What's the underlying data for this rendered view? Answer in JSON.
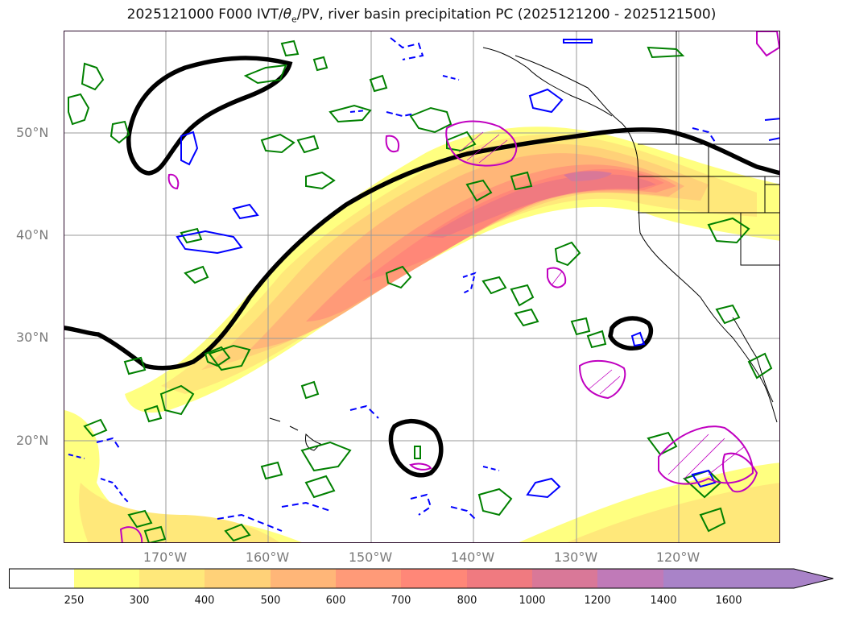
{
  "title_parts": {
    "prefix": "2025121000 F000 IVT/",
    "theta": "θ",
    "sub": "e",
    "suffix": "/PV, river basin precipitation PC (2025121200 - 2025121500)"
  },
  "map": {
    "lat_labels": [
      "50°N",
      "40°N",
      "30°N",
      "20°N"
    ],
    "lon_labels": [
      "170°W",
      "160°W",
      "150°W",
      "140°W",
      "130°W",
      "120°W"
    ],
    "gridlines": true,
    "fill_colors": [
      "#ffff80",
      "#ffe87a",
      "#ffd178",
      "#ffb678",
      "#ff9a78",
      "#ff8778",
      "#f07a80",
      "#d97898",
      "#c07ab8",
      "#a983c8"
    ],
    "line_colors": {
      "black": "#000000",
      "green": "#008000",
      "blue": "#0000ff",
      "magenta": "#c000c0",
      "coast": "#000000"
    }
  },
  "colorbar": {
    "tick_labels": [
      "250",
      "300",
      "400",
      "500",
      "600",
      "700",
      "800",
      "1000",
      "1200",
      "1400",
      "1600"
    ],
    "colors": [
      "#ffffff",
      "#ffff80",
      "#ffe87a",
      "#ffd178",
      "#ffb678",
      "#ff9a78",
      "#ff8778",
      "#f07a80",
      "#d97898",
      "#c07ab8",
      "#a983c8",
      "#a983c8"
    ],
    "extend": "max"
  }
}
